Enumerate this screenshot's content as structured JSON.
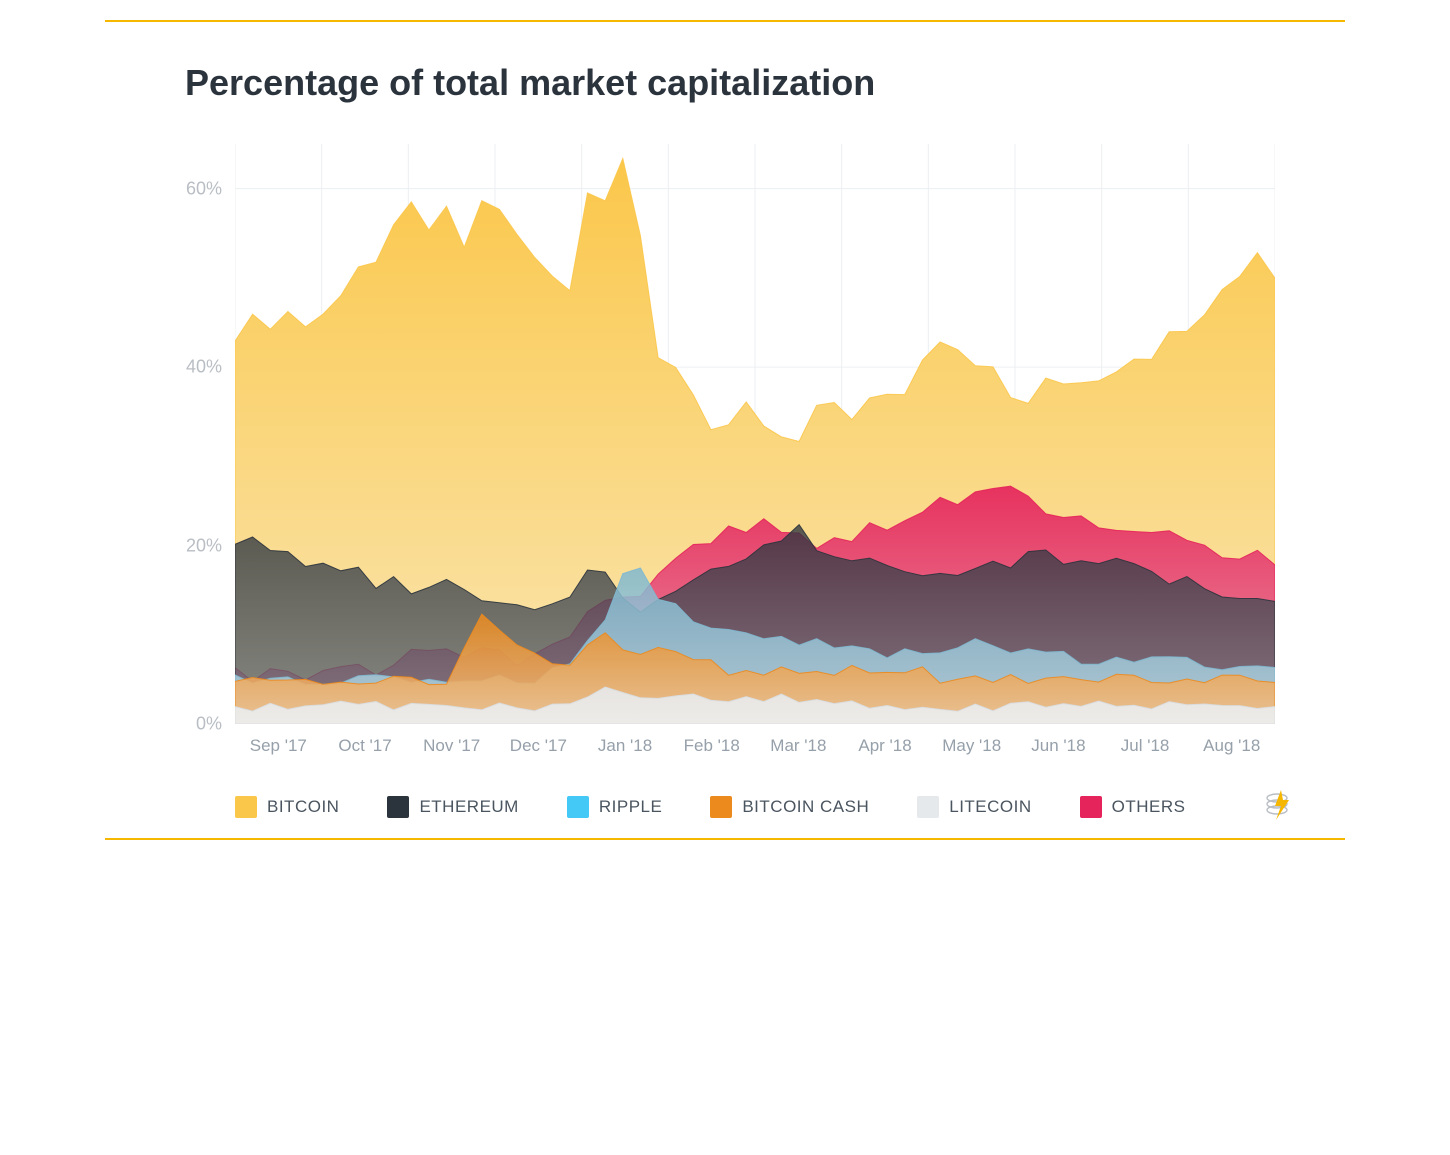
{
  "title": "Percentage of total market capitalization",
  "chart": {
    "type": "area-overlaid",
    "background_color": "#ffffff",
    "grid_color": "#eceff1",
    "axis_label_color": "#b9bec4",
    "x_label_color": "#96a0aa",
    "title_color": "#2b333d",
    "title_fontsize": 36,
    "label_fontsize": 18,
    "ylim": [
      0,
      65
    ],
    "yticks": [
      0,
      20,
      40,
      60
    ],
    "ytick_labels": [
      "0%",
      "20%",
      "40%",
      "60%"
    ],
    "x_categories": [
      "Sep '17",
      "Oct '17",
      "Nov '17",
      "Dec '17",
      "Jan '18",
      "Feb '18",
      "Mar '18",
      "Apr '18",
      "May '18",
      "Jun '18",
      "Jul '18",
      "Aug '18"
    ],
    "n_points": 60,
    "series": [
      {
        "name": "BITCOIN",
        "color": "#fbc74a",
        "fill_top": "#fbc74a",
        "fill_bottom": "#f9e6b2",
        "opacity": 1.0,
        "values": [
          44,
          45,
          45,
          46,
          44,
          47,
          49,
          52,
          51,
          55,
          58,
          56,
          58,
          54,
          59,
          58,
          54,
          53,
          51,
          48,
          60,
          58,
          64,
          55,
          42,
          40,
          36,
          34,
          34,
          35,
          33,
          33,
          32,
          36,
          35,
          35,
          37,
          38,
          38,
          40,
          43,
          42,
          41,
          39,
          37,
          36,
          38,
          38,
          38,
          39,
          40,
          40,
          41,
          43,
          43,
          45,
          48,
          50,
          52,
          49
        ]
      },
      {
        "name": "OTHERS",
        "color": "#e5245b",
        "fill_top": "#e5245b",
        "fill_bottom": "#e78aa2",
        "opacity": 0.92,
        "values": [
          6,
          5,
          6,
          6,
          5,
          6,
          7,
          7,
          6,
          7,
          8,
          8,
          9,
          8,
          8,
          8,
          7,
          8,
          9,
          10,
          13,
          14,
          14,
          14,
          17,
          18,
          20,
          20,
          22,
          22,
          23,
          22,
          21,
          20,
          21,
          21,
          22,
          22,
          23,
          24,
          25,
          25,
          26,
          26,
          27,
          25,
          24,
          23,
          23,
          22,
          22,
          21,
          21,
          22,
          21,
          20,
          19,
          18,
          19,
          18
        ]
      },
      {
        "name": "ETHEREUM",
        "color": "#2b333d",
        "fill_top": "#2b333d",
        "fill_bottom": "#6a7078",
        "opacity": 0.78,
        "values": [
          20,
          21,
          20,
          19,
          18,
          18,
          17,
          17,
          15,
          16,
          15,
          15,
          16,
          15,
          14,
          14,
          13,
          13,
          14,
          14,
          17,
          17,
          14,
          13,
          14,
          15,
          16,
          17,
          18,
          19,
          20,
          21,
          22,
          20,
          19,
          18,
          18,
          18,
          17,
          17,
          17,
          17,
          18,
          18,
          18,
          19,
          19,
          18,
          18,
          18,
          18,
          18,
          17,
          16,
          16,
          15,
          14,
          14,
          14,
          14
        ]
      },
      {
        "name": "RIPPLE",
        "color": "#7fb8cf",
        "fill_top": "#7fb8cf",
        "fill_bottom": "#b9d7e3",
        "opacity": 0.85,
        "values": [
          5,
          5,
          5,
          5,
          5,
          5,
          5,
          5,
          5,
          5,
          5,
          5,
          5,
          5,
          5,
          5,
          5,
          5,
          6,
          7,
          9,
          12,
          17,
          18,
          14,
          13,
          12,
          11,
          10,
          10,
          10,
          10,
          9,
          9,
          9,
          9,
          9,
          8,
          8,
          8,
          8,
          9,
          9,
          9,
          8,
          8,
          8,
          8,
          7,
          7,
          7,
          7,
          7,
          7,
          7,
          6,
          6,
          6,
          6,
          6
        ]
      },
      {
        "name": "BITCOIN CASH",
        "color": "#ec8a1d",
        "fill_top": "#ec8a1d",
        "fill_bottom": "#f3c18a",
        "opacity": 0.85,
        "values": [
          5,
          5,
          5,
          5,
          5,
          5,
          5,
          5,
          5,
          5,
          5,
          5,
          5,
          8,
          12,
          11,
          9,
          8,
          7,
          7,
          9,
          10,
          8,
          8,
          8,
          8,
          7,
          7,
          6,
          6,
          6,
          6,
          6,
          6,
          6,
          6,
          6,
          6,
          6,
          6,
          5,
          5,
          5,
          5,
          5,
          5,
          5,
          5,
          5,
          5,
          5,
          5,
          5,
          5,
          5,
          5,
          5,
          5,
          5,
          5
        ]
      },
      {
        "name": "LITECOIN",
        "color": "#d9dde1",
        "fill_top": "#e6e9ec",
        "fill_bottom": "#eef0f2",
        "opacity": 0.9,
        "values": [
          2,
          2,
          2,
          2,
          2,
          2,
          2,
          2,
          2,
          2,
          2,
          2,
          2,
          2,
          2,
          2,
          2,
          2,
          2,
          2,
          3,
          4,
          4,
          3,
          3,
          3,
          3,
          3,
          3,
          3,
          3,
          3,
          3,
          3,
          2,
          2,
          2,
          2,
          2,
          2,
          2,
          2,
          2,
          2,
          2,
          2,
          2,
          2,
          2,
          2,
          2,
          2,
          2,
          2,
          2,
          2,
          2,
          2,
          2,
          2
        ]
      }
    ],
    "legend_order": [
      "BITCOIN",
      "ETHEREUM",
      "RIPPLE",
      "BITCOIN CASH",
      "LITECOIN",
      "OTHERS"
    ],
    "legend_colors": {
      "BITCOIN": "#fbc74a",
      "ETHEREUM": "#2b333d",
      "RIPPLE": "#44c8f5",
      "BITCOIN CASH": "#ec8a1d",
      "LITECOIN": "#e6e9ec",
      "OTHERS": "#e5245b"
    }
  },
  "frame": {
    "accent_color": "#f6b700"
  }
}
